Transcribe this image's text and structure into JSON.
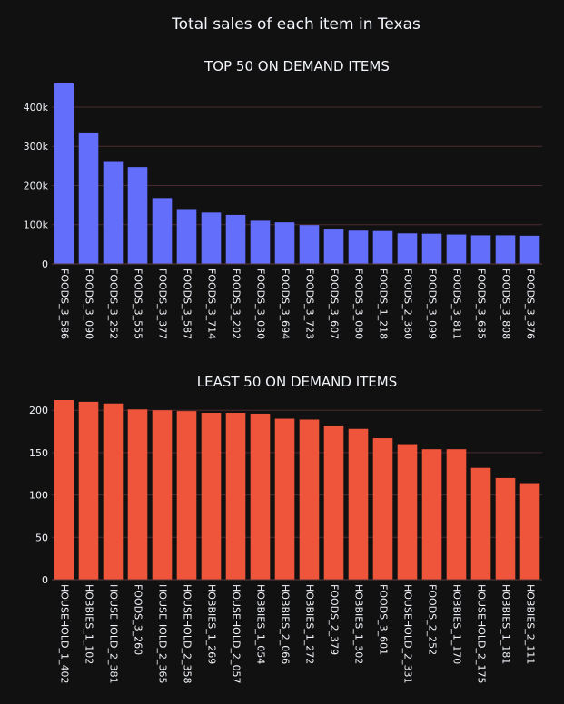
{
  "title": "Total sales of each item in Texas",
  "chart_data": [
    {
      "type": "bar",
      "title": "TOP 50 ON DEMAND ITEMS",
      "color": "#636efa",
      "categories": [
        "FOODS_3_586",
        "FOODS_3_090",
        "FOODS_3_252",
        "FOODS_3_555",
        "FOODS_3_377",
        "FOODS_3_587",
        "FOODS_3_714",
        "FOODS_3_202",
        "FOODS_3_030",
        "FOODS_3_694",
        "FOODS_3_723",
        "FOODS_3_607",
        "FOODS_3_080",
        "FOODS_1_218",
        "FOODS_2_360",
        "FOODS_3_099",
        "FOODS_3_811",
        "FOODS_3_635",
        "FOODS_3_808",
        "FOODS_3_376"
      ],
      "values": [
        460000,
        333000,
        260000,
        247000,
        168000,
        140000,
        131000,
        125000,
        110000,
        106000,
        99000,
        90000,
        85000,
        84000,
        78000,
        77000,
        75000,
        73000,
        73000,
        72000
      ],
      "ylim": [
        0,
        460000
      ],
      "yticks": [
        0,
        100000,
        200000,
        300000,
        400000
      ],
      "yticklabels": [
        "0",
        "100k",
        "200k",
        "300k",
        "400k"
      ],
      "grid": true
    },
    {
      "type": "bar",
      "title": "LEAST 50 ON DEMAND ITEMS",
      "color": "#ef553b",
      "categories": [
        "HOUSEHOLD_1_402",
        "HOBBIES_1_102",
        "HOUSEHOLD_2_381",
        "FOODS_3_260",
        "HOUSEHOLD_2_365",
        "HOUSEHOLD_2_358",
        "HOBBIES_1_269",
        "HOUSEHOLD_2_057",
        "HOBBIES_1_054",
        "HOBBIES_2_066",
        "HOBBIES_1_272",
        "FOODS_2_379",
        "HOBBIES_1_302",
        "FOODS_3_601",
        "HOUSEHOLD_2_331",
        "FOODS_2_252",
        "HOBBIES_1_170",
        "HOUSEHOLD_2_175",
        "HOBBIES_1_181",
        "HOBBIES_2_111"
      ],
      "values": [
        212,
        210,
        208,
        201,
        200,
        199,
        197,
        197,
        196,
        190,
        189,
        181,
        178,
        167,
        160,
        154,
        154,
        132,
        120,
        114
      ],
      "ylim": [
        0,
        212
      ],
      "yticks": [
        0,
        50,
        100,
        150,
        200
      ],
      "yticklabels": [
        "0",
        "50",
        "100",
        "150",
        "200"
      ],
      "grid": true
    }
  ]
}
